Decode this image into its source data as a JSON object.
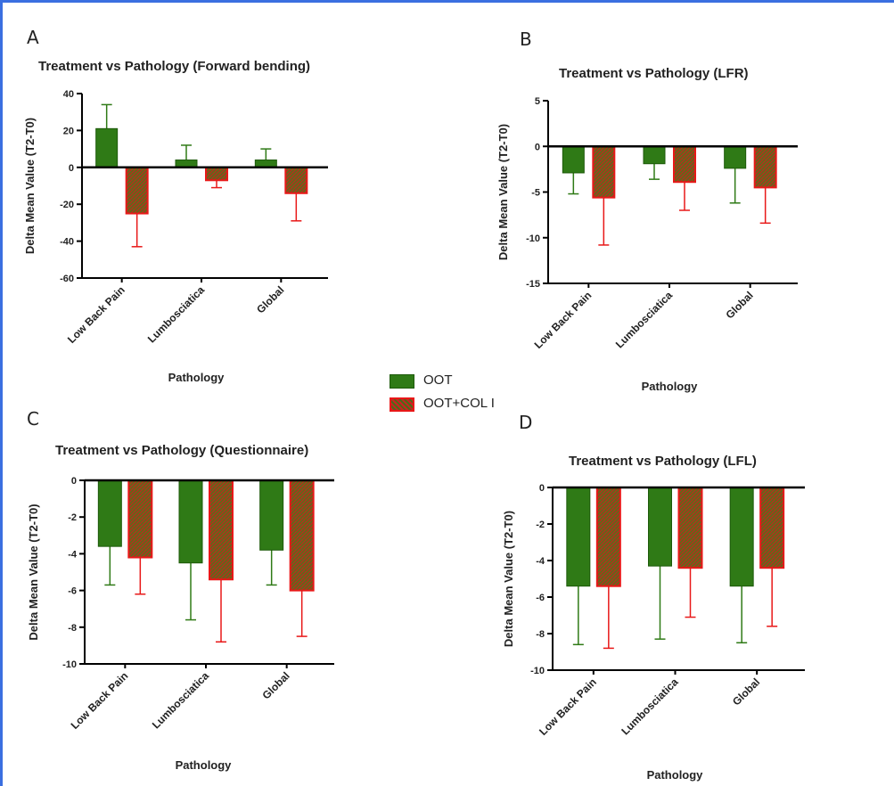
{
  "legend": [
    {
      "label": "OOT",
      "color": "#2f7a16"
    },
    {
      "label": "OOT+COL I",
      "color": "#e81818"
    }
  ],
  "colors": {
    "oot_fill": "#2f7a16",
    "col_fill": "#6d6a1a",
    "col_border": "#e81818"
  },
  "chart_data": [
    {
      "type": "bar",
      "panel": "A",
      "title": "Treatment vs Pathology (Forward bending)",
      "xlabel": "Pathology",
      "ylabel": "Delta Mean Value (T2-T0)",
      "categories": [
        "Low Back Pain",
        "Lumbosciatica",
        "Global"
      ],
      "ylim": [
        -60,
        40
      ],
      "yticks": [
        40,
        20,
        0,
        -20,
        -40,
        -60
      ],
      "series": [
        {
          "name": "OOT",
          "values": [
            21,
            4,
            4
          ],
          "errors": [
            13,
            8,
            6
          ]
        },
        {
          "name": "OOT+COL I",
          "values": [
            -25,
            -7,
            -14
          ],
          "errors": [
            18,
            4,
            15
          ]
        }
      ]
    },
    {
      "type": "bar",
      "panel": "B",
      "title": "Treatment vs Pathology (LFR)",
      "xlabel": "Pathology",
      "ylabel": "Delta Mean Value (T2-T0)",
      "categories": [
        "Low Back Pain",
        "Lumbosciatica",
        "Global"
      ],
      "ylim": [
        -15,
        5
      ],
      "yticks": [
        5,
        0,
        -5,
        -10,
        -15
      ],
      "series": [
        {
          "name": "OOT",
          "values": [
            -2.9,
            -1.9,
            -2.4
          ],
          "errors": [
            2.3,
            1.7,
            3.8
          ]
        },
        {
          "name": "OOT+COL I",
          "values": [
            -5.6,
            -3.9,
            -4.5
          ],
          "errors": [
            5.2,
            3.1,
            3.9
          ]
        }
      ]
    },
    {
      "type": "bar",
      "panel": "C",
      "title": "Treatment vs Pathology (Questionnaire)",
      "xlabel": "Pathology",
      "ylabel": "Delta Mean Value (T2-T0)",
      "categories": [
        "Low Back Pain",
        "Lumbosciatica",
        "Global"
      ],
      "ylim": [
        -10,
        0
      ],
      "yticks": [
        0,
        -2,
        -4,
        -6,
        -8,
        -10
      ],
      "series": [
        {
          "name": "OOT",
          "values": [
            -3.6,
            -4.5,
            -3.8
          ],
          "errors": [
            2.1,
            3.1,
            1.9
          ]
        },
        {
          "name": "OOT+COL I",
          "values": [
            -4.2,
            -5.4,
            -6.0
          ],
          "errors": [
            2.0,
            3.4,
            2.5
          ]
        }
      ]
    },
    {
      "type": "bar",
      "panel": "D",
      "title": "Treatment vs Pathology (LFL)",
      "xlabel": "Pathology",
      "ylabel": "Delta Mean Value (T2-T0)",
      "categories": [
        "Low Back Pain",
        "Lumbosciatica",
        "Global"
      ],
      "ylim": [
        -10,
        0
      ],
      "yticks": [
        0,
        -2,
        -4,
        -6,
        -8,
        -10
      ],
      "series": [
        {
          "name": "OOT",
          "values": [
            -5.4,
            -4.3,
            -5.4
          ],
          "errors": [
            3.2,
            4.0,
            3.1
          ]
        },
        {
          "name": "OOT+COL I",
          "values": [
            -5.4,
            -4.4,
            -4.4
          ],
          "errors": [
            3.4,
            2.7,
            3.2
          ]
        }
      ]
    }
  ]
}
